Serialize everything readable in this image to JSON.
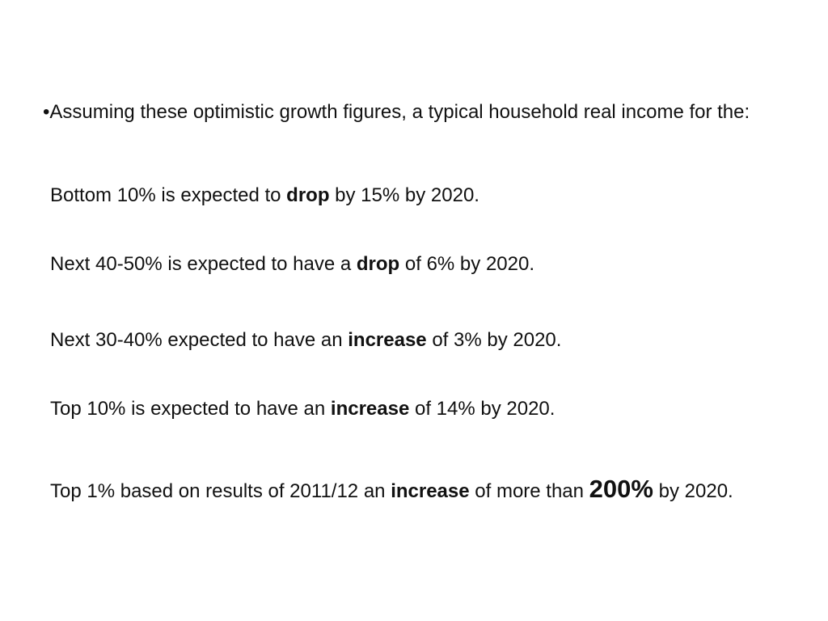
{
  "intro": {
    "bullet": "•",
    "text": "Assuming these optimistic growth figures, a typical household real income for the:"
  },
  "stats": [
    {
      "pre": "Bottom 10% is expected to ",
      "em": "drop",
      "post": " by 15% by 2020."
    },
    {
      "pre": "Next 40-50% is expected to have a ",
      "em": "drop",
      "post": " of 6% by 2020."
    },
    {
      "pre": "Next 30-40% expected to have an ",
      "em": "increase",
      "post": " of 3% by 2020."
    },
    {
      "pre": "Top 10% is expected to have an ",
      "em": "increase",
      "post": " of 14% by 2020."
    },
    {
      "pre": "Top 1% based on results of 2011/12 an ",
      "em": "increase",
      "mid": " of more than ",
      "big": "200%",
      "post": " by 2020."
    }
  ]
}
